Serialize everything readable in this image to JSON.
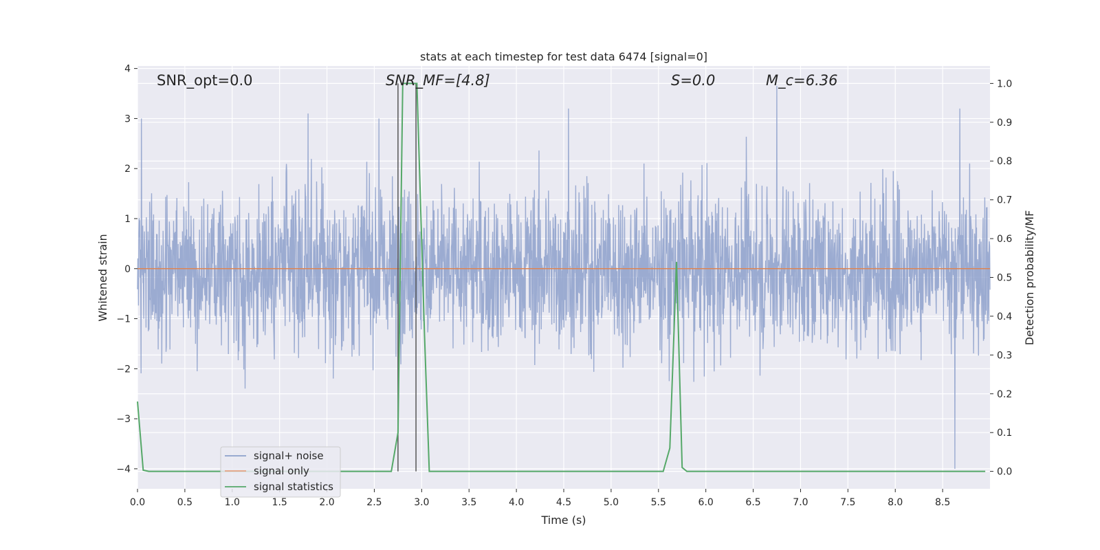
{
  "chart_data": {
    "type": "line",
    "title": "stats at each timestep for test data 6474 [signal=0]",
    "xlabel": "Time (s)",
    "ylabel_left": "Whitened strain",
    "ylabel_right": "Detection probability/MF",
    "xlim": [
      0.0,
      9.0
    ],
    "ylim_left": [
      -4.4,
      4.05
    ],
    "ylim_right": [
      -0.045,
      1.045
    ],
    "x_ticks": [
      0.0,
      0.5,
      1.0,
      1.5,
      2.0,
      2.5,
      3.0,
      3.5,
      4.0,
      4.5,
      5.0,
      5.5,
      6.0,
      6.5,
      7.0,
      7.5,
      8.0,
      8.5
    ],
    "x_tick_labels": [
      "0.0",
      "0.5",
      "1.0",
      "1.5",
      "2.0",
      "2.5",
      "3.0",
      "3.5",
      "4.0",
      "4.5",
      "5.0",
      "5.5",
      "6.0",
      "6.5",
      "7.0",
      "7.5",
      "8.0",
      "8.5"
    ],
    "y_left_ticks": [
      -4,
      -3,
      -2,
      -1,
      0,
      1,
      2,
      3,
      4
    ],
    "y_left_tick_labels": [
      "−4",
      "−3",
      "−2",
      "−1",
      "0",
      "1",
      "2",
      "3",
      "4"
    ],
    "y_right_ticks": [
      0.0,
      0.1,
      0.2,
      0.3,
      0.4,
      0.5,
      0.6,
      0.7,
      0.8,
      0.9,
      1.0
    ],
    "y_right_tick_labels": [
      "0.0",
      "0.1",
      "0.2",
      "0.3",
      "0.4",
      "0.5",
      "0.6",
      "0.7",
      "0.8",
      "0.9",
      "1.0"
    ],
    "grid": true,
    "legend_position": "lower-left",
    "annotations": [
      {
        "text": "SNR_opt=0.0",
        "x": 0.2
      },
      {
        "text": "SNR_MF=[4.8]",
        "x": 2.6
      },
      {
        "text": "S=0.0",
        "x": 5.6
      },
      {
        "text": "M_c=6.36",
        "x": 6.6
      }
    ],
    "vertical_lines": [
      2.75,
      2.94
    ],
    "series": [
      {
        "name": "signal+ noise",
        "axis": "left",
        "color": "#8da0cb",
        "description_stats": {
          "typical_band": [
            -1.7,
            1.7
          ],
          "max_peak": 3.7,
          "min_peak": -4.0
        },
        "notable_peaks": [
          [
            0.04,
            3.0
          ],
          [
            1.8,
            3.1
          ],
          [
            2.55,
            3.0
          ],
          [
            4.55,
            3.2
          ],
          [
            6.75,
            3.65
          ],
          [
            8.63,
            -4.0
          ],
          [
            8.68,
            3.2
          ]
        ]
      },
      {
        "name": "signal only",
        "axis": "left",
        "color": "#e5a17f",
        "x": [
          0.0,
          9.0
        ],
        "values": [
          0.0,
          0.0
        ]
      },
      {
        "name": "signal statistics",
        "axis": "right",
        "color": "#55a868",
        "x": [
          0.0,
          0.06,
          0.12,
          2.68,
          2.75,
          2.8,
          2.88,
          2.95,
          3.03,
          3.08,
          3.14,
          5.55,
          5.62,
          5.69,
          5.75,
          5.8,
          8.95
        ],
        "values": [
          0.18,
          0.003,
          0.0,
          0.0,
          0.1,
          1.0,
          1.0,
          1.0,
          0.35,
          0.0,
          0.0,
          0.0,
          0.06,
          0.54,
          0.01,
          0.0,
          0.0
        ]
      }
    ]
  }
}
